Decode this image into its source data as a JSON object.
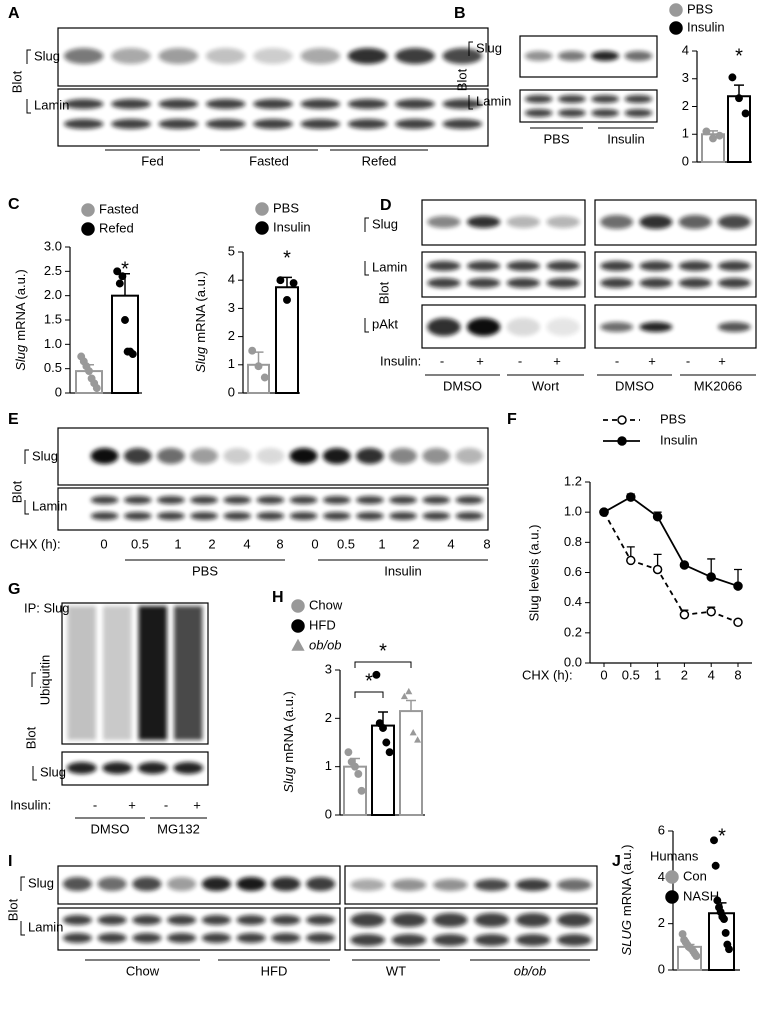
{
  "blots": {
    "A": {
      "label": "A",
      "blot": "Blot",
      "rows": [
        "Slug",
        "Lamin"
      ],
      "groups": [
        "Fed",
        "Fasted",
        "Refed"
      ]
    },
    "B": {
      "label": "B",
      "blot": "Blot",
      "rows": [
        "Slug",
        "Lamin"
      ],
      "groups": [
        "PBS",
        "Insulin"
      ]
    },
    "D": {
      "label": "D",
      "blot": "Blot",
      "rows": [
        "Slug",
        "Lamin",
        "pAkt"
      ],
      "treatment": "Insulin:",
      "lanes": [
        "-",
        "+",
        "-",
        "+",
        "-",
        "+",
        "-",
        "+"
      ],
      "groups": [
        "DMSO",
        "Wort",
        "DMSO",
        "MK2066"
      ]
    },
    "E": {
      "label": "E",
      "blot": "Blot",
      "rows": [
        "Slug",
        "Lamin"
      ],
      "time_label": "CHX (h):",
      "lanes": [
        "0",
        "0.5",
        "1",
        "2",
        "4",
        "8",
        "0",
        "0.5",
        "1",
        "2",
        "4",
        "8"
      ],
      "groups": [
        "PBS",
        "Insulin"
      ]
    },
    "G": {
      "label": "G",
      "ip": "IP: Slug",
      "blot": "Blot",
      "rows": [
        "Ubiquitin",
        "Slug"
      ],
      "treatment": "Insulin:",
      "lanes": [
        "-",
        "+",
        "-",
        "+"
      ],
      "groups": [
        "DMSO",
        "MG132"
      ]
    },
    "I": {
      "label": "I",
      "blot": "Blot",
      "rows": [
        "Slug",
        "Lamin"
      ],
      "groups": [
        "Chow",
        "HFD",
        "WT",
        "ob/ob"
      ]
    }
  },
  "chart_data": [
    {
      "type": "bar",
      "ylim": [
        0,
        4
      ],
      "yticks": [
        0,
        1,
        2,
        3,
        4
      ],
      "annotations": [
        "*"
      ],
      "series": [
        {
          "name": "PBS",
          "color": "#999999",
          "marker": "circle",
          "values": [
            1.0
          ],
          "errors": [
            0.12
          ],
          "points": [
            1.1,
            0.85,
            0.95
          ]
        },
        {
          "name": "Insulin",
          "color": "#000000",
          "marker": "circle",
          "values": [
            2.37
          ],
          "errors": [
            0.4
          ],
          "points": [
            3.05,
            2.3,
            1.75
          ]
        }
      ]
    },
    {
      "type": "bar",
      "panel": "C",
      "ylabel": [
        "Slug",
        "mRNA (a.u.)"
      ],
      "ylim": [
        0,
        3
      ],
      "yticks": [
        0,
        0.5,
        {
          "value": 1,
          "label": "1.0"
        },
        1.5,
        {
          "value": 2,
          "label": "2.0"
        },
        2.5,
        {
          "value": 3,
          "label": "3.0"
        }
      ],
      "annotations": [
        "*"
      ],
      "series": [
        {
          "name": "Fasted",
          "color": "#999999",
          "marker": "circle",
          "values": [
            0.45
          ],
          "errors": [
            0.13
          ],
          "points": [
            0.75,
            0.65,
            0.55,
            0.45,
            0.3,
            0.2,
            0.1
          ]
        },
        {
          "name": "Refed",
          "color": "#000000",
          "marker": "circle",
          "values": [
            2.0
          ],
          "errors": [
            0.45
          ],
          "points": [
            2.5,
            2.25,
            2.4,
            1.5,
            0.85,
            0.85,
            0.8
          ]
        }
      ]
    },
    {
      "type": "bar",
      "ylabel": [
        "Slug",
        "mRNA (a.u.)"
      ],
      "ylim": [
        0,
        5
      ],
      "yticks": [
        0,
        1,
        2,
        3,
        4,
        5
      ],
      "annotations": [
        "*"
      ],
      "series": [
        {
          "name": "PBS",
          "color": "#999999",
          "marker": "circle",
          "values": [
            1.0
          ],
          "errors": [
            0.45
          ],
          "points": [
            1.5,
            0.95,
            0.55
          ]
        },
        {
          "name": "Insulin",
          "color": "#000000",
          "marker": "circle",
          "values": [
            3.75
          ],
          "errors": [
            0.35
          ],
          "points": [
            4.0,
            3.3,
            3.9
          ]
        }
      ]
    },
    {
      "type": "line",
      "panel": "F",
      "ylabel": "Slug levels (a.u.)",
      "xlabel": "CHX (h):",
      "categories": [
        "0",
        "0.5",
        "1",
        "2",
        "4",
        "8"
      ],
      "ylim": [
        0,
        1.2
      ],
      "yticks": [
        {
          "value": 0,
          "label": "0.0"
        },
        0.2,
        0.4,
        0.6,
        0.8,
        {
          "value": 1,
          "label": "1.0"
        },
        1.2
      ],
      "series": [
        {
          "name": "PBS",
          "color": "#000000",
          "line_style": "dashed",
          "marker_fill": "#ffffff",
          "values": [
            1.0,
            0.68,
            0.62,
            0.32,
            0.34,
            0.27
          ],
          "errors": [
            0,
            0.09,
            0.1,
            0.03,
            0.03,
            0.01
          ]
        },
        {
          "name": "Insulin",
          "color": "#000000",
          "line_style": "solid",
          "marker_fill": "#000000",
          "values": [
            1.0,
            1.1,
            0.97,
            0.65,
            0.57,
            0.51
          ],
          "errors": [
            0,
            0.02,
            0.03,
            0.01,
            0.12,
            0.11
          ]
        }
      ]
    },
    {
      "type": "bar",
      "panel": "H",
      "ylabel": [
        "Slug",
        "mRNA (a.u.)"
      ],
      "ylim": [
        0,
        3
      ],
      "yticks": [
        0,
        1,
        2,
        3
      ],
      "annotations": [
        "*",
        "*"
      ],
      "series": [
        {
          "name": "Chow",
          "color": "#999999",
          "marker": "circle",
          "values": [
            1.0
          ],
          "errors": [
            0.17
          ],
          "points": [
            1.3,
            1.1,
            1.0,
            0.85,
            0.5
          ]
        },
        {
          "name": "HFD",
          "color": "#000000",
          "marker": "circle",
          "values": [
            1.85
          ],
          "errors": [
            0.28
          ],
          "points": [
            2.9,
            1.9,
            1.8,
            1.5,
            1.3
          ]
        },
        {
          "name": "ob/ob",
          "color": "#999999",
          "marker": "triangle",
          "values": [
            2.15
          ],
          "errors": [
            0.22
          ],
          "points": [
            2.45,
            2.55,
            1.7,
            1.55
          ]
        }
      ]
    },
    {
      "type": "bar",
      "panel": "J",
      "title": "Humans",
      "ylabel": [
        "SLUG",
        "mRNA (a.u.)"
      ],
      "ylim": [
        0,
        6
      ],
      "yticks": [
        0,
        2,
        4,
        6
      ],
      "annotations": [
        "*"
      ],
      "series": [
        {
          "name": "Con",
          "color": "#999999",
          "marker": "circle",
          "values": [
            1.0
          ],
          "errors": [
            0.1
          ],
          "points": [
            1.55,
            1.3,
            1.2,
            1.1,
            1.0,
            0.95,
            0.9,
            0.8,
            0.7,
            0.6
          ]
        },
        {
          "name": "NASH",
          "color": "#000000",
          "marker": "circle",
          "values": [
            2.45
          ],
          "errors": [
            0.45
          ],
          "points": [
            5.6,
            4.5,
            3.0,
            2.7,
            2.5,
            2.3,
            2.2,
            1.6,
            1.1,
            0.9
          ]
        }
      ]
    }
  ]
}
